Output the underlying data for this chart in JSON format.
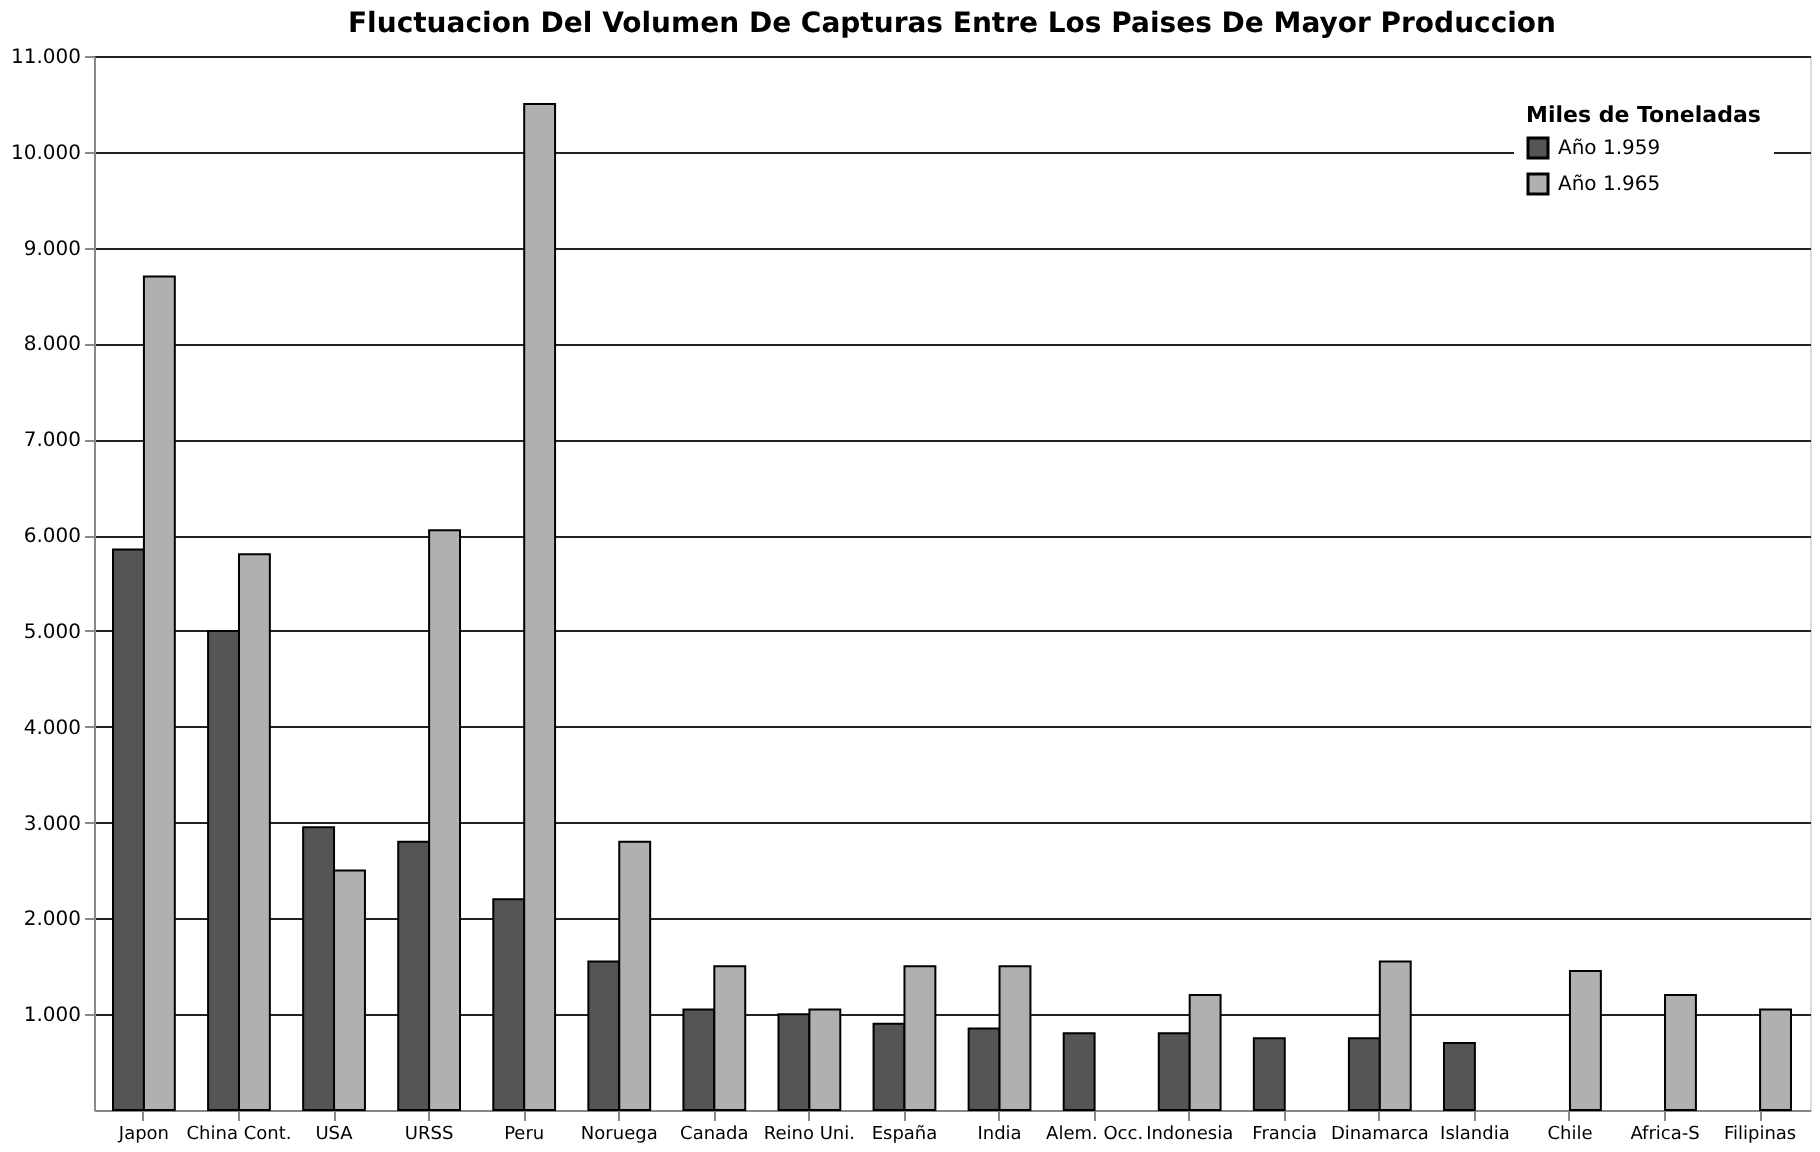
{
  "chart_data": {
    "type": "bar",
    "title": "Fluctuacion Del Volumen De Capturas Entre Los Paises De Mayor Produccion",
    "legend_title": "Miles de Toneladas",
    "categories": [
      "Japon",
      "China Cont.",
      "USA",
      "URSS",
      "Peru",
      "Noruega",
      "Canada",
      "Reino Uni.",
      "España",
      "India",
      "Alem. Occ.",
      "Indonesia",
      "Francia",
      "Dinamarca",
      "Islandia",
      "Chile",
      "Africa-S",
      "Filipinas"
    ],
    "series": [
      {
        "name": "Año 1.959",
        "color": "#555555",
        "values": [
          5850,
          5000,
          2950,
          2800,
          2200,
          1550,
          1050,
          1000,
          900,
          850,
          800,
          800,
          750,
          750,
          700,
          null,
          null,
          null
        ]
      },
      {
        "name": "Año 1.965",
        "color": "#b0b0b0",
        "values": [
          8700,
          5800,
          2500,
          6050,
          10500,
          2800,
          1500,
          1050,
          1500,
          1500,
          null,
          1200,
          null,
          1550,
          null,
          1450,
          1200,
          1050
        ]
      }
    ],
    "ylim": [
      0,
      11000
    ],
    "yticks": [
      {
        "value": 1000,
        "label": "1.000"
      },
      {
        "value": 2000,
        "label": "2.000"
      },
      {
        "value": 3000,
        "label": "3.000"
      },
      {
        "value": 4000,
        "label": "4.000"
      },
      {
        "value": 5000,
        "label": "5.000"
      },
      {
        "value": 6000,
        "label": "6.000"
      },
      {
        "value": 7000,
        "label": "7.000"
      },
      {
        "value": 8000,
        "label": "8.000"
      },
      {
        "value": 9000,
        "label": "9.000"
      },
      {
        "value": 10000,
        "label": "10.000"
      },
      {
        "value": 11000,
        "label": "11.000"
      }
    ],
    "grid": "y",
    "legend": "top right"
  }
}
